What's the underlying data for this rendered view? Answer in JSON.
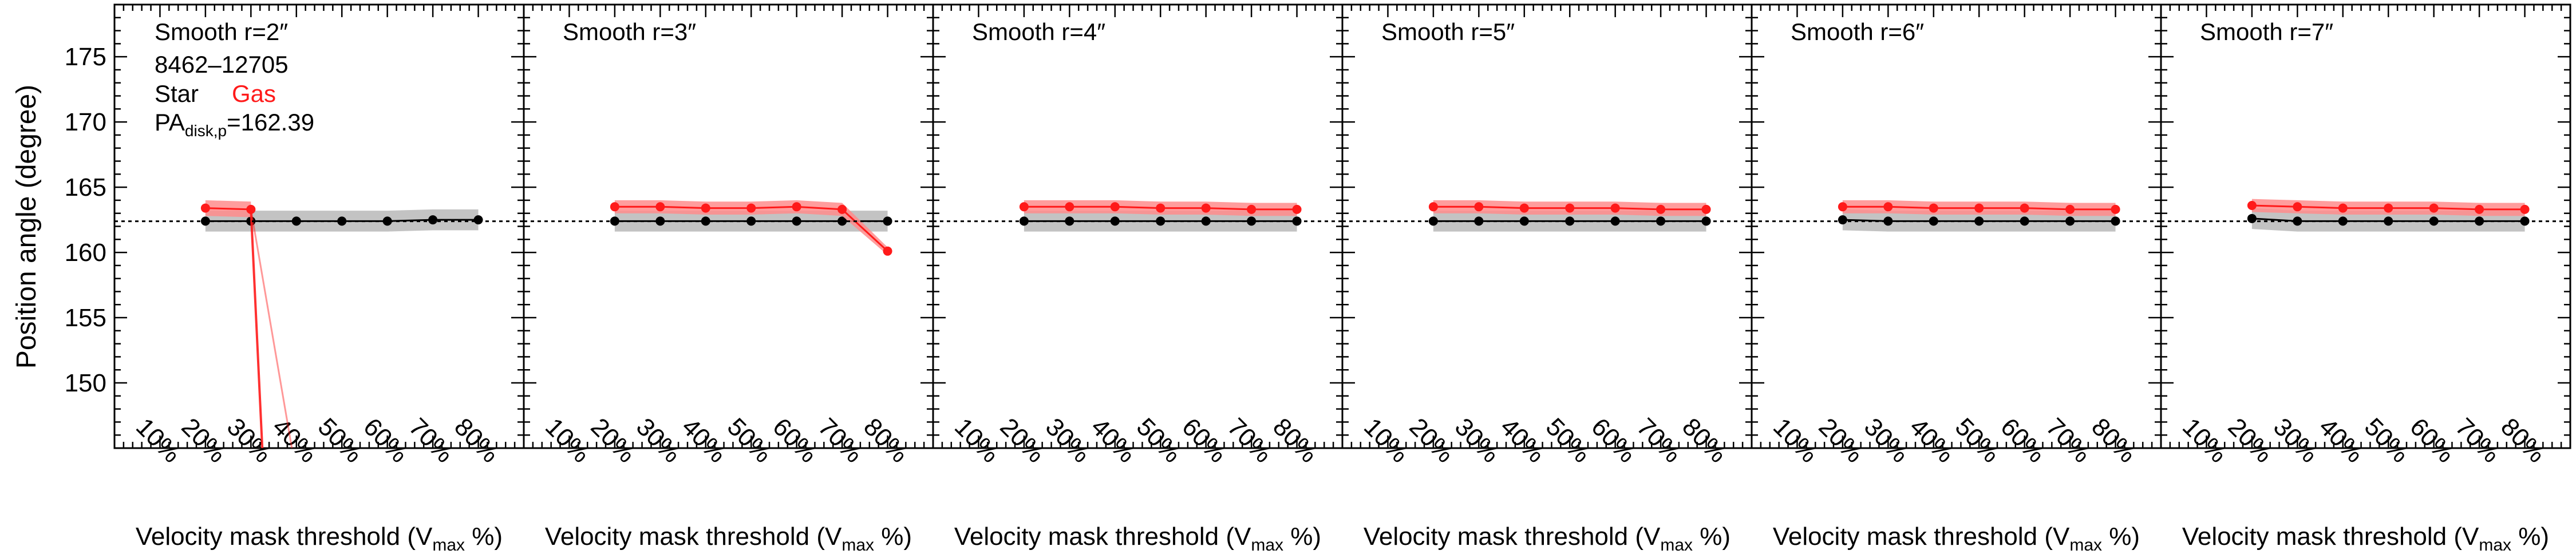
{
  "figure": {
    "y_axis_label": "Position angle (degree)",
    "x_axis_label_main": "Velocity mask threshold (V",
    "x_axis_label_sub": "max",
    "x_axis_label_tail": " %)",
    "info_lines": {
      "galaxy_id": "8462–12705",
      "star_label": "Star",
      "gas_label": "Gas",
      "pa_main": "PA",
      "pa_sub": "disk,p",
      "pa_value": "=162.39"
    },
    "colors": {
      "star": "#000000",
      "gas": "#ff1a1a",
      "star_band": "#b8b8b8",
      "gas_band": "#ff8c8c",
      "reference_line": "#000000"
    }
  },
  "chart_data": {
    "type": "line",
    "x_tick_labels": [
      "10%",
      "20%",
      "30%",
      "40%",
      "50%",
      "60%",
      "70%",
      "80%"
    ],
    "y_tick_labels": [
      "150",
      "155",
      "160",
      "165",
      "170",
      "175"
    ],
    "y_ticks": [
      150,
      155,
      160,
      165,
      170,
      175
    ],
    "xlim": [
      0,
      90
    ],
    "ylim": [
      145,
      179
    ],
    "reference_line": 162.39,
    "panels": [
      {
        "title": "Smooth r=2″",
        "series": [
          {
            "name": "Star",
            "x": [
              20,
              30,
              40,
              50,
              60,
              70,
              80
            ],
            "values": [
              162.4,
              162.4,
              162.4,
              162.4,
              162.4,
              162.5,
              162.5
            ],
            "err": [
              0.8,
              0.8,
              0.8,
              0.8,
              0.8,
              0.8,
              0.8
            ]
          },
          {
            "name": "Gas",
            "x": [
              20,
              30
            ],
            "values": [
              163.4,
              163.3
            ],
            "err": [
              0.6,
              0.6
            ]
          }
        ],
        "gas_drop_lines": [
          {
            "x1": 30,
            "y1": 163.3,
            "x2": 32.5,
            "y2": 145,
            "width": 4,
            "opacity": 0.9
          },
          {
            "x1": 30,
            "y1": 163.3,
            "x2": 39,
            "y2": 145,
            "width": 3,
            "opacity": 0.45
          }
        ]
      },
      {
        "title": "Smooth r=3″",
        "series": [
          {
            "name": "Star",
            "x": [
              20,
              30,
              40,
              50,
              60,
              70,
              80
            ],
            "values": [
              162.4,
              162.4,
              162.4,
              162.4,
              162.4,
              162.4,
              162.4
            ],
            "err": [
              0.8,
              0.8,
              0.8,
              0.8,
              0.8,
              0.8,
              0.8
            ]
          },
          {
            "name": "Gas",
            "x": [
              20,
              30,
              40,
              50,
              60,
              70,
              80
            ],
            "values": [
              163.5,
              163.5,
              163.4,
              163.4,
              163.5,
              163.3,
              160.1
            ],
            "err": [
              0.5,
              0.5,
              0.5,
              0.5,
              0.5,
              0.5,
              0.3
            ]
          }
        ],
        "gas_drop_lines": []
      },
      {
        "title": "Smooth r=4″",
        "series": [
          {
            "name": "Star",
            "x": [
              20,
              30,
              40,
              50,
              60,
              70,
              80
            ],
            "values": [
              162.4,
              162.4,
              162.4,
              162.4,
              162.4,
              162.4,
              162.4
            ],
            "err": [
              0.8,
              0.8,
              0.8,
              0.8,
              0.8,
              0.8,
              0.8
            ]
          },
          {
            "name": "Gas",
            "x": [
              20,
              30,
              40,
              50,
              60,
              70,
              80
            ],
            "values": [
              163.5,
              163.5,
              163.5,
              163.4,
              163.4,
              163.3,
              163.3
            ],
            "err": [
              0.5,
              0.5,
              0.5,
              0.5,
              0.5,
              0.5,
              0.5
            ]
          }
        ],
        "gas_drop_lines": []
      },
      {
        "title": "Smooth r=5″",
        "series": [
          {
            "name": "Star",
            "x": [
              20,
              30,
              40,
              50,
              60,
              70,
              80
            ],
            "values": [
              162.4,
              162.4,
              162.4,
              162.4,
              162.4,
              162.4,
              162.4
            ],
            "err": [
              0.8,
              0.8,
              0.8,
              0.8,
              0.8,
              0.8,
              0.8
            ]
          },
          {
            "name": "Gas",
            "x": [
              20,
              30,
              40,
              50,
              60,
              70,
              80
            ],
            "values": [
              163.5,
              163.5,
              163.4,
              163.4,
              163.4,
              163.3,
              163.3
            ],
            "err": [
              0.5,
              0.5,
              0.5,
              0.5,
              0.5,
              0.5,
              0.5
            ]
          }
        ],
        "gas_drop_lines": []
      },
      {
        "title": "Smooth r=6″",
        "series": [
          {
            "name": "Star",
            "x": [
              20,
              30,
              40,
              50,
              60,
              70,
              80
            ],
            "values": [
              162.5,
              162.4,
              162.4,
              162.4,
              162.4,
              162.4,
              162.4
            ],
            "err": [
              0.8,
              0.8,
              0.8,
              0.8,
              0.8,
              0.8,
              0.8
            ]
          },
          {
            "name": "Gas",
            "x": [
              20,
              30,
              40,
              50,
              60,
              70,
              80
            ],
            "values": [
              163.5,
              163.5,
              163.4,
              163.4,
              163.4,
              163.3,
              163.3
            ],
            "err": [
              0.5,
              0.5,
              0.5,
              0.5,
              0.5,
              0.5,
              0.5
            ]
          }
        ],
        "gas_drop_lines": []
      },
      {
        "title": "Smooth r=7″",
        "series": [
          {
            "name": "Star",
            "x": [
              20,
              30,
              40,
              50,
              60,
              70,
              80
            ],
            "values": [
              162.6,
              162.4,
              162.4,
              162.4,
              162.4,
              162.4,
              162.4
            ],
            "err": [
              0.8,
              0.8,
              0.8,
              0.8,
              0.8,
              0.8,
              0.8
            ]
          },
          {
            "name": "Gas",
            "x": [
              20,
              30,
              40,
              50,
              60,
              70,
              80
            ],
            "values": [
              163.6,
              163.5,
              163.4,
              163.4,
              163.4,
              163.3,
              163.3
            ],
            "err": [
              0.5,
              0.5,
              0.5,
              0.5,
              0.5,
              0.5,
              0.5
            ]
          }
        ],
        "gas_drop_lines": []
      }
    ]
  }
}
